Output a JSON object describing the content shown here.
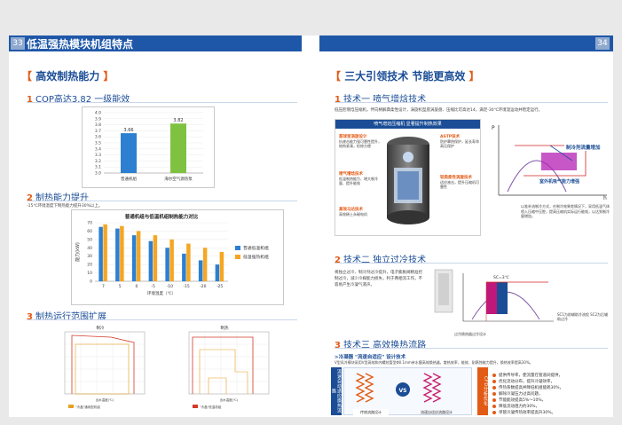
{
  "header": {
    "left_page": "33",
    "left_title": "低温强热模块机组特点",
    "right_page": "34"
  },
  "left": {
    "heading": "高效制热能力",
    "s1": {
      "num": "1",
      "title": "COP高达3.82  一级能效"
    },
    "s2": {
      "num": "2",
      "title": "制热能力提升",
      "note": "-15℃环境温度下制热能力提升30%以上。"
    },
    "s3": {
      "num": "3",
      "title": "制热运行范围扩展"
    },
    "range_charts": [
      {
        "title": "制冷",
        "legend": "\"冷晶\"通用型机组",
        "xlabel": "出水温度(℃)"
      },
      {
        "title": "制热",
        "legend": "\"冷晶\"低温机组",
        "xlabel": "出水温度(℃)"
      }
    ]
  },
  "right": {
    "heading": "三大引领技术  节能更高效",
    "t1": {
      "num": "1",
      "title": "技术一  喷气增焓技术",
      "desc": "低压腔增焓压缩机，伴向柄解典柔性设计，涡旋机型底涡旋盘、压缩比可高达14，满足-30℃环境温运动并稳定运行。",
      "banner": "喷气增焓压缩机  显著提升制热效果",
      "callouts": [
        {
          "title": "蒸球室涡旋设计",
          "text": "抗液击能力强可靠性提升，结构紧凑，检修方便"
        },
        {
          "title": "ASTP技术",
          "text": "防护罩热保护，延长寿命高压保护"
        },
        {
          "title": "喷气增焓技术",
          "text": "低温制热能力、增大制冷量、提升能效"
        },
        {
          "title": "轻质柔性涡旋技术",
          "text": "适应液击，提升压缩机可靠性"
        },
        {
          "title": "高效马达技术",
          "text": "高效稀土永磁电机"
        }
      ],
      "ph_labels": {
        "p": "P",
        "h": "h",
        "gain": "制冷剂流量增加",
        "loss": "室外机吸气能力增强"
      },
      "ph_note": "以准补流制冷方式，在制冷效果差情况下，采用低温气体喷入压缩中压腔，提高压缩机实际运行能效，以达到制冷量增加。"
    },
    "t2": {
      "num": "2",
      "title": "技术二  独立过冷技术",
      "desc": "将独立过冷、制冷剂过冷提升，电子膨胀阀精准控制过冷，减少冷媒能力损失，利于两相流工作，不容易产生冷凝气液声。",
      "dia_label": "SC=3℃",
      "foot": "过冷换热器过冷设计",
      "note": "SC1为前辅助冷流程 SC2为后辅助过冷"
    },
    "t3": {
      "num": "3",
      "title": "技术三  高效换热流路",
      "sub": ">冷凝器 \"流速自适应\" 设计技术",
      "desc": "V型风冷模块采用V型高效和内螺纹管型Φ0.1mm亲水膜高效换热器，散热效率、能效、耐腐蚀能力提升，换热效率提高30%。",
      "left_strip": "流速自动适应换热流路",
      "right_strip": "CFD分析优化",
      "labels": [
        "传统流路设计",
        "流速自适应流路设计"
      ],
      "arrows_left": "冷凝流向\n有效利用",
      "arrows_right": "冷凝过程\n流速平衡",
      "vs": "VS",
      "bullets": [
        "提供传导率，使流量在管道间提供，",
        "优化流动分布，提升冷凝效率，",
        "传热系数提高并降低机组能耗30%，",
        "解除冷凝压力过高问题，",
        "节能能效提高5%～10%，",
        "降低流动阻力约30%，",
        "单管冷凝传热效率提高升30%。"
      ]
    }
  },
  "chart_data": [
    {
      "type": "bar",
      "title": "",
      "categories": [
        "普通机组",
        "海尔空气源热泵"
      ],
      "values": [
        3.66,
        3.82
      ],
      "ylim": [
        3.0,
        4.0
      ],
      "yticks": [
        3.0,
        3.1,
        3.2,
        3.3,
        3.4,
        3.5,
        3.6,
        3.7,
        3.8,
        3.9,
        4.0
      ],
      "colors": [
        "#2c7fd1",
        "#7fc241"
      ],
      "xlabel": "",
      "ylabel": ""
    },
    {
      "type": "bar",
      "title": "普通机组与低温机组制热能力对比",
      "categories": [
        "7",
        "5",
        "0",
        "-5",
        "-10",
        "-15",
        "-20",
        "-25"
      ],
      "series": [
        {
          "name": "普通低温机组",
          "values": [
            65,
            63,
            55,
            48,
            40,
            33,
            25,
            20
          ],
          "color": "#2c7fd1"
        },
        {
          "name": "低温强热机组",
          "values": [
            68,
            66,
            60,
            55,
            50,
            45,
            40,
            35
          ],
          "color": "#f5a623"
        }
      ],
      "ylim": [
        0,
        70
      ],
      "yticks": [
        0,
        10,
        20,
        30,
        40,
        50,
        60,
        70
      ],
      "xlabel": "环境温度（℃）",
      "ylabel": "能力(kW)"
    }
  ]
}
